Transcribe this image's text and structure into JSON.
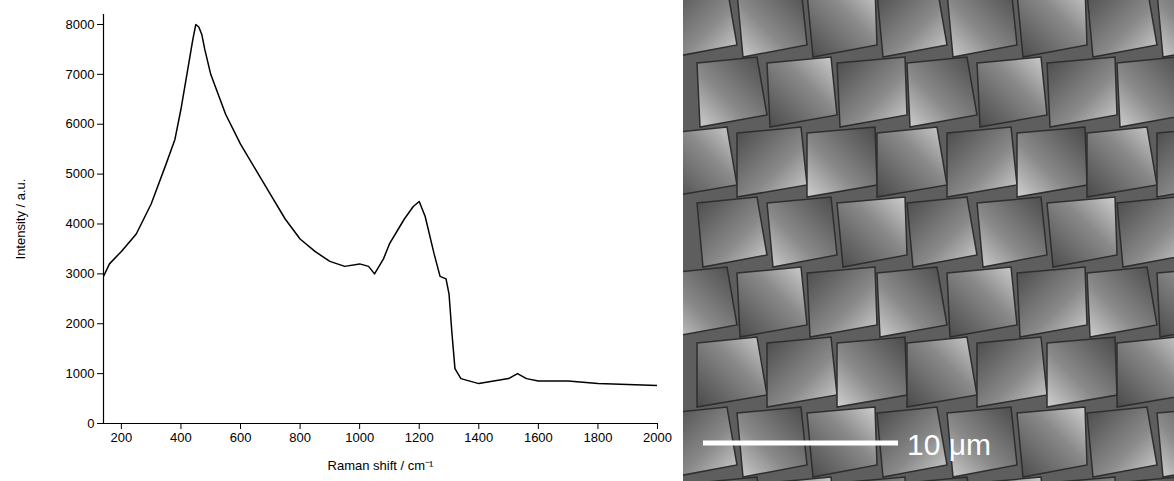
{
  "chart_data": {
    "type": "line",
    "x_label": "Raman shift / cm⁻¹",
    "y_label": "Intensity / a.u.",
    "color": "#000000",
    "xlim": [
      140,
      2000
    ],
    "xticks": [
      200,
      400,
      600,
      800,
      1000,
      1200,
      1400,
      1600,
      1800,
      2000
    ],
    "ylim": [
      0,
      8200
    ],
    "yticks": [
      0,
      1000,
      2000,
      3000,
      4000,
      5000,
      6000,
      7000,
      8000
    ],
    "grid": false,
    "x": [
      140,
      160,
      200,
      250,
      300,
      350,
      380,
      400,
      420,
      440,
      450,
      460,
      470,
      480,
      500,
      550,
      600,
      650,
      700,
      750,
      800,
      850,
      900,
      950,
      1000,
      1030,
      1050,
      1080,
      1100,
      1150,
      1180,
      1200,
      1220,
      1250,
      1270,
      1290,
      1300,
      1310,
      1320,
      1340,
      1400,
      1450,
      1500,
      1530,
      1560,
      1600,
      1700,
      1800,
      1900,
      2000
    ],
    "values": [
      2950,
      3200,
      3450,
      3800,
      4400,
      5200,
      5700,
      6300,
      7000,
      7700,
      8000,
      7950,
      7800,
      7500,
      7000,
      6200,
      5600,
      5100,
      4600,
      4100,
      3700,
      3450,
      3250,
      3150,
      3200,
      3150,
      3000,
      3300,
      3600,
      4100,
      4350,
      4450,
      4150,
      3400,
      2950,
      2900,
      2600,
      1800,
      1100,
      900,
      800,
      850,
      900,
      1000,
      900,
      850,
      850,
      800,
      780,
      760
    ]
  },
  "image_panel": {
    "scale_bar_label": "10 μm"
  }
}
